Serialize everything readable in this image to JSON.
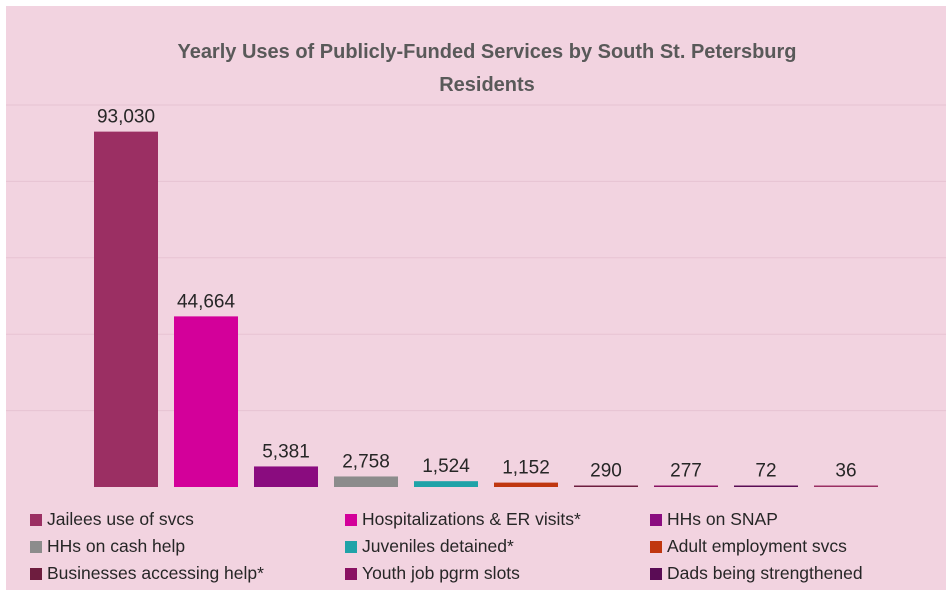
{
  "chart_data": {
    "type": "bar",
    "title": "Yearly Uses of Publicly-Funded Services by South St. Petersburg Residents",
    "title_lines": [
      "Yearly Uses of Publicly-Funded Services by South St. Petersburg",
      "Residents"
    ],
    "xlabel": "",
    "ylabel": "",
    "ylim": [
      0,
      100000
    ],
    "grid": true,
    "legend_position": "bottom",
    "background_color": "#f2d3e0",
    "gridline_color": "#e7c3d2",
    "series": [
      {
        "name": "Jailees use of svcs",
        "value": 93030,
        "label": "93,030",
        "color": "#9b2f63"
      },
      {
        "name": "Hospitalizations & ER visits*",
        "value": 44664,
        "label": "44,664",
        "color": "#d3009a"
      },
      {
        "name": "HHs on SNAP",
        "value": 5381,
        "label": "5,381",
        "color": "#8a0c7f"
      },
      {
        "name": "HHs on cash help",
        "value": 2758,
        "label": "2,758",
        "color": "#8c8c8c"
      },
      {
        "name": "Juveniles detained*",
        "value": 1524,
        "label": "1,524",
        "color": "#1fa3a8"
      },
      {
        "name": "Adult employment svcs",
        "value": 1152,
        "label": "1,152",
        "color": "#c0360f"
      },
      {
        "name": "Businesses accessing help*",
        "value": 290,
        "label": "290",
        "color": "#6e1d3f"
      },
      {
        "name": "Youth job pgrm slots",
        "value": 277,
        "label": "277",
        "color": "#8a1162"
      },
      {
        "name": "Dads being strengthened",
        "value": 72,
        "label": "72",
        "color": "#5a0c55"
      },
      {
        "name": "",
        "value": 36,
        "label": "36",
        "color": "#9b2f63"
      }
    ]
  }
}
